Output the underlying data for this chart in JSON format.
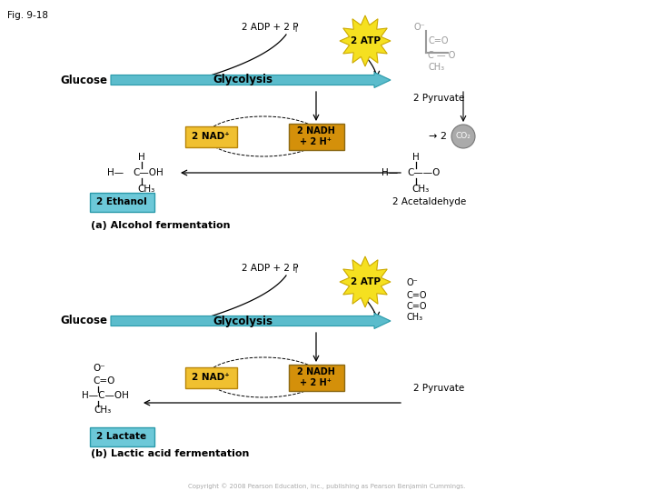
{
  "fig_label": "Fig. 9-18",
  "bg_color": "#ffffff",
  "section_a": {
    "adp_text": "2 ADP + 2 P",
    "adp_i": "i",
    "atp_text": "2 ATP",
    "glucose_text": "Glucose",
    "glycolysis_text": "Glycolysis",
    "pyruvate_text": "2 Pyruvate",
    "nad_text": "2 NAD⁺",
    "nadh_text": "2 NADH\n+ 2 H⁺",
    "co2_text": "CO₂",
    "ethanol_text": "2 Ethanol",
    "acetaldehyde_text": "2 Acetaldehyde",
    "label": "(a) Alcohol fermentation",
    "glycolysis_arrow_color": "#5bbccc",
    "nad_box_color": "#f0c030",
    "nadh_box_color": "#d4900a",
    "atp_burst_color": "#f5e020",
    "ethanol_box_color": "#6cc8d8",
    "co2_circle_color": "#aaaaaa"
  },
  "section_b": {
    "adp_text": "2 ADP + 2 P",
    "adp_i": "i",
    "atp_text": "2 ATP",
    "glucose_text": "Glucose",
    "glycolysis_text": "Glycolysis",
    "pyruvate_text": "2 Pyruvate",
    "nad_text": "2 NAD⁺",
    "nadh_text": "2 NADH\n+ 2 H⁺",
    "lactate_text": "2 Lactate",
    "label": "(b) Lactic acid fermentation",
    "glycolysis_arrow_color": "#5bbccc",
    "nad_box_color": "#f0c030",
    "nadh_box_color": "#d4900a",
    "atp_burst_color": "#f5e020",
    "lactate_box_color": "#6cc8d8"
  },
  "copyright_text": "Copyright © 2008 Pearson Education, Inc., publishing as Pearson Benjamin Cummings."
}
